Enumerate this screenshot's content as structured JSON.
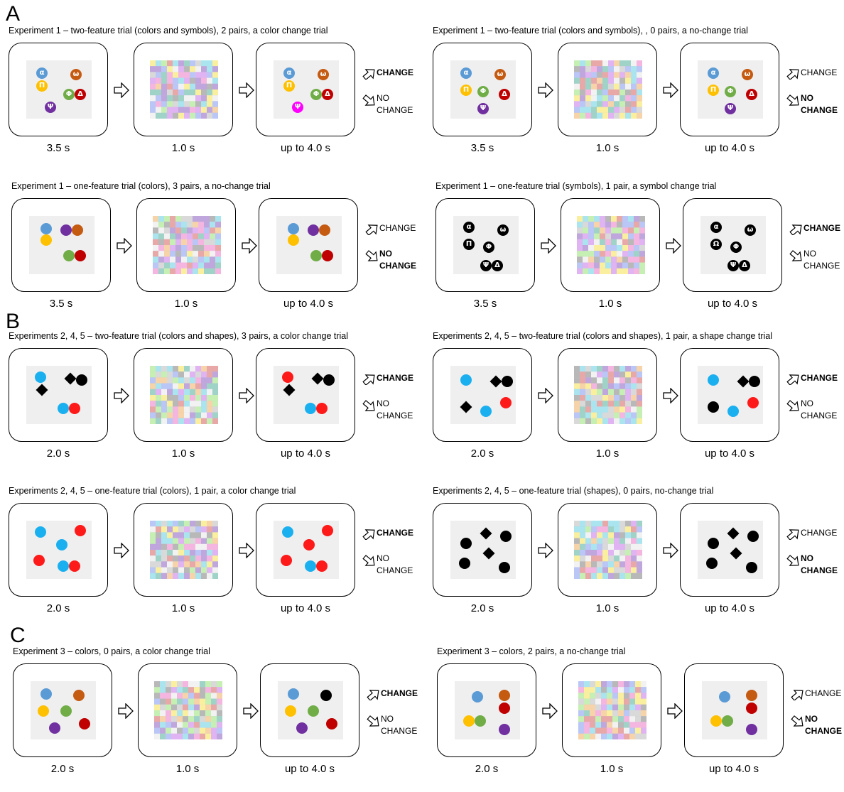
{
  "sections": [
    "A",
    "B",
    "C"
  ],
  "trials": [
    {
      "title": "Experiment 1 – two-feature trial (colors and symbols), 2 pairs, a color change trial",
      "durations": [
        "3.5 s",
        "1.0 s",
        "up to 4.0 s"
      ],
      "answer": "change",
      "sample": [
        {
          "color": "#5b9bd5",
          "sym": "α",
          "x": 14,
          "y": 10
        },
        {
          "color": "#c55a11",
          "sym": "ω",
          "x": 62,
          "y": 12
        },
        {
          "color": "#ffc000",
          "sym": "Π",
          "x": 14,
          "y": 28
        },
        {
          "color": "#70ad47",
          "sym": "Φ",
          "x": 52,
          "y": 40
        },
        {
          "color": "#c00000",
          "sym": "Δ",
          "x": 68,
          "y": 40
        },
        {
          "color": "#7030a0",
          "sym": "Ψ",
          "x": 26,
          "y": 58
        }
      ],
      "test": [
        {
          "color": "#5b9bd5",
          "sym": "α",
          "x": 14,
          "y": 10
        },
        {
          "color": "#c55a11",
          "sym": "ω",
          "x": 62,
          "y": 12
        },
        {
          "color": "#ffc000",
          "sym": "Π",
          "x": 14,
          "y": 28
        },
        {
          "color": "#70ad47",
          "sym": "Φ",
          "x": 52,
          "y": 40
        },
        {
          "color": "#c00000",
          "sym": "Δ",
          "x": 68,
          "y": 40
        },
        {
          "color": "#ff00ff",
          "sym": "Ψ",
          "x": 26,
          "y": 58
        }
      ]
    },
    {
      "title": "Experiment 1 – two-feature trial (colors and symbols), , 0 pairs, a no-change trial",
      "durations": [
        "3.5 s",
        "1.0 s",
        "up to 4.0 s"
      ],
      "answer": "nochange",
      "sample": [
        {
          "color": "#5b9bd5",
          "sym": "α",
          "x": 14,
          "y": 10
        },
        {
          "color": "#c55a11",
          "sym": "ω",
          "x": 62,
          "y": 12
        },
        {
          "color": "#ffc000",
          "sym": "Π",
          "x": 14,
          "y": 34
        },
        {
          "color": "#70ad47",
          "sym": "Φ",
          "x": 38,
          "y": 36
        },
        {
          "color": "#c00000",
          "sym": "Δ",
          "x": 68,
          "y": 40
        },
        {
          "color": "#7030a0",
          "sym": "Ψ",
          "x": 38,
          "y": 60
        }
      ],
      "test": [
        {
          "color": "#5b9bd5",
          "sym": "α",
          "x": 14,
          "y": 10
        },
        {
          "color": "#c55a11",
          "sym": "ω",
          "x": 62,
          "y": 12
        },
        {
          "color": "#ffc000",
          "sym": "Π",
          "x": 14,
          "y": 34
        },
        {
          "color": "#70ad47",
          "sym": "Φ",
          "x": 38,
          "y": 36
        },
        {
          "color": "#c00000",
          "sym": "Δ",
          "x": 68,
          "y": 40
        },
        {
          "color": "#7030a0",
          "sym": "Ψ",
          "x": 38,
          "y": 60
        }
      ]
    },
    {
      "title": "Experiment 1 – one-feature trial (colors), 3 pairs, a no-change trial",
      "durations": [
        "3.5 s",
        "1.0 s",
        "up to 4.0 s"
      ],
      "answer": "nochange",
      "sample": [
        {
          "color": "#5b9bd5",
          "sym": "",
          "x": 16,
          "y": 10
        },
        {
          "color": "#7030a0",
          "sym": "",
          "x": 44,
          "y": 12
        },
        {
          "color": "#c55a11",
          "sym": "",
          "x": 60,
          "y": 12
        },
        {
          "color": "#ffc000",
          "sym": "",
          "x": 16,
          "y": 26
        },
        {
          "color": "#70ad47",
          "sym": "",
          "x": 48,
          "y": 48
        },
        {
          "color": "#c00000",
          "sym": "",
          "x": 64,
          "y": 48
        }
      ],
      "test": [
        {
          "color": "#5b9bd5",
          "sym": "",
          "x": 16,
          "y": 10
        },
        {
          "color": "#7030a0",
          "sym": "",
          "x": 44,
          "y": 12
        },
        {
          "color": "#c55a11",
          "sym": "",
          "x": 60,
          "y": 12
        },
        {
          "color": "#ffc000",
          "sym": "",
          "x": 16,
          "y": 26
        },
        {
          "color": "#70ad47",
          "sym": "",
          "x": 48,
          "y": 48
        },
        {
          "color": "#c00000",
          "sym": "",
          "x": 64,
          "y": 48
        }
      ]
    },
    {
      "title": "Experiment 1 – one-feature trial (symbols), 1 pair, a symbol change trial",
      "durations": [
        "3.5 s",
        "1.0 s",
        "up to 4.0 s"
      ],
      "answer": "change",
      "sample": [
        {
          "color": "#000",
          "sym": "α",
          "x": 14,
          "y": 8
        },
        {
          "color": "#000",
          "sym": "ω",
          "x": 62,
          "y": 12
        },
        {
          "color": "#000",
          "sym": "Π",
          "x": 14,
          "y": 32
        },
        {
          "color": "#000",
          "sym": "Φ",
          "x": 42,
          "y": 36
        },
        {
          "color": "#000",
          "sym": "Ψ",
          "x": 38,
          "y": 62
        },
        {
          "color": "#000",
          "sym": "Δ",
          "x": 54,
          "y": 62
        }
      ],
      "test": [
        {
          "color": "#000",
          "sym": "α",
          "x": 14,
          "y": 8
        },
        {
          "color": "#000",
          "sym": "ω",
          "x": 62,
          "y": 12
        },
        {
          "color": "#000",
          "sym": "Ω",
          "x": 14,
          "y": 32
        },
        {
          "color": "#000",
          "sym": "Φ",
          "x": 42,
          "y": 36
        },
        {
          "color": "#000",
          "sym": "Ψ",
          "x": 38,
          "y": 62
        },
        {
          "color": "#000",
          "sym": "Δ",
          "x": 54,
          "y": 62
        }
      ]
    },
    {
      "title": "Experiments 2, 4, 5 – two-feature trial (colors and shapes), 3 pairs, a color change trial",
      "durations": [
        "2.0 s",
        "1.0 s",
        "up to 4.0 s"
      ],
      "answer": "change",
      "sample": [
        {
          "color": "#1ab0f0",
          "shape": "circle",
          "x": 12,
          "y": 8
        },
        {
          "color": "#000",
          "shape": "diamond",
          "x": 54,
          "y": 10
        },
        {
          "color": "#000",
          "shape": "circle",
          "x": 70,
          "y": 12
        },
        {
          "color": "#000",
          "shape": "diamond",
          "x": 14,
          "y": 26
        },
        {
          "color": "#1ab0f0",
          "shape": "circle",
          "x": 44,
          "y": 52
        },
        {
          "color": "#ff1a1a",
          "shape": "circle",
          "x": 60,
          "y": 52
        }
      ],
      "test": [
        {
          "color": "#ff1a1a",
          "shape": "circle",
          "x": 12,
          "y": 8
        },
        {
          "color": "#000",
          "shape": "diamond",
          "x": 54,
          "y": 10
        },
        {
          "color": "#000",
          "shape": "circle",
          "x": 70,
          "y": 12
        },
        {
          "color": "#000",
          "shape": "diamond",
          "x": 14,
          "y": 26
        },
        {
          "color": "#1ab0f0",
          "shape": "circle",
          "x": 44,
          "y": 52
        },
        {
          "color": "#ff1a1a",
          "shape": "circle",
          "x": 60,
          "y": 52
        }
      ]
    },
    {
      "title": "Experiments 2, 4, 5 – two-feature trial (colors and shapes), 1 pair, a shape change trial",
      "durations": [
        "2.0 s",
        "1.0 s",
        "up to 4.0 s"
      ],
      "answer": "change",
      "sample": [
        {
          "color": "#1ab0f0",
          "shape": "circle",
          "x": 14,
          "y": 12
        },
        {
          "color": "#000",
          "shape": "diamond",
          "x": 56,
          "y": 14
        },
        {
          "color": "#000",
          "shape": "circle",
          "x": 72,
          "y": 14
        },
        {
          "color": "#000",
          "shape": "diamond",
          "x": 14,
          "y": 50
        },
        {
          "color": "#1ab0f0",
          "shape": "circle",
          "x": 42,
          "y": 56
        },
        {
          "color": "#ff1a1a",
          "shape": "circle",
          "x": 70,
          "y": 44
        }
      ],
      "test": [
        {
          "color": "#1ab0f0",
          "shape": "circle",
          "x": 14,
          "y": 12
        },
        {
          "color": "#000",
          "shape": "diamond",
          "x": 56,
          "y": 14
        },
        {
          "color": "#000",
          "shape": "circle",
          "x": 72,
          "y": 14
        },
        {
          "color": "#000",
          "shape": "circle",
          "x": 14,
          "y": 50
        },
        {
          "color": "#1ab0f0",
          "shape": "circle",
          "x": 42,
          "y": 56
        },
        {
          "color": "#ff1a1a",
          "shape": "circle",
          "x": 70,
          "y": 44
        }
      ]
    },
    {
      "title": "Experiments 2, 4, 5 – one-feature trial (colors), 1 pair, a color change trial",
      "durations": [
        "2.0 s",
        "1.0 s",
        "up to 4.0 s"
      ],
      "answer": "change",
      "sample": [
        {
          "color": "#1ab0f0",
          "shape": "circle",
          "x": 12,
          "y": 8
        },
        {
          "color": "#ff1a1a",
          "shape": "circle",
          "x": 68,
          "y": 6
        },
        {
          "color": "#1ab0f0",
          "shape": "circle",
          "x": 42,
          "y": 26
        },
        {
          "color": "#ff1a1a",
          "shape": "circle",
          "x": 10,
          "y": 48
        },
        {
          "color": "#1ab0f0",
          "shape": "circle",
          "x": 44,
          "y": 56
        },
        {
          "color": "#ff1a1a",
          "shape": "circle",
          "x": 60,
          "y": 56
        }
      ],
      "test": [
        {
          "color": "#1ab0f0",
          "shape": "circle",
          "x": 12,
          "y": 8
        },
        {
          "color": "#ff1a1a",
          "shape": "circle",
          "x": 68,
          "y": 6
        },
        {
          "color": "#ff1a1a",
          "shape": "circle",
          "x": 42,
          "y": 26
        },
        {
          "color": "#ff1a1a",
          "shape": "circle",
          "x": 10,
          "y": 48
        },
        {
          "color": "#1ab0f0",
          "shape": "circle",
          "x": 44,
          "y": 56
        },
        {
          "color": "#ff1a1a",
          "shape": "circle",
          "x": 60,
          "y": 56
        }
      ]
    },
    {
      "title": "Experiments 2, 4, 5 – one-feature trial (shapes), 0 pairs, no-change trial",
      "durations": [
        "2.0 s",
        "1.0 s",
        "up to 4.0 s"
      ],
      "answer": "nochange",
      "sample": [
        {
          "color": "#000",
          "shape": "diamond",
          "x": 42,
          "y": 10
        },
        {
          "color": "#000",
          "shape": "circle",
          "x": 70,
          "y": 14
        },
        {
          "color": "#000",
          "shape": "circle",
          "x": 14,
          "y": 24
        },
        {
          "color": "#000",
          "shape": "diamond",
          "x": 46,
          "y": 38
        },
        {
          "color": "#000",
          "shape": "circle",
          "x": 12,
          "y": 52
        },
        {
          "color": "#000",
          "shape": "circle",
          "x": 68,
          "y": 58
        }
      ],
      "test": [
        {
          "color": "#000",
          "shape": "diamond",
          "x": 42,
          "y": 10
        },
        {
          "color": "#000",
          "shape": "circle",
          "x": 70,
          "y": 14
        },
        {
          "color": "#000",
          "shape": "circle",
          "x": 14,
          "y": 24
        },
        {
          "color": "#000",
          "shape": "diamond",
          "x": 46,
          "y": 38
        },
        {
          "color": "#000",
          "shape": "circle",
          "x": 12,
          "y": 52
        },
        {
          "color": "#000",
          "shape": "circle",
          "x": 68,
          "y": 58
        }
      ]
    },
    {
      "title": "Experiment 3 – colors, 0 pairs, a color change trial",
      "durations": [
        "2.0 s",
        "1.0 s",
        "up to 4.0 s"
      ],
      "answer": "change",
      "sample": [
        {
          "color": "#5b9bd5",
          "shape": "circle",
          "x": 14,
          "y": 10
        },
        {
          "color": "#c55a11",
          "shape": "circle",
          "x": 60,
          "y": 12
        },
        {
          "color": "#ffc000",
          "shape": "circle",
          "x": 10,
          "y": 34
        },
        {
          "color": "#70ad47",
          "shape": "circle",
          "x": 42,
          "y": 34
        },
        {
          "color": "#7030a0",
          "shape": "circle",
          "x": 26,
          "y": 58
        },
        {
          "color": "#c00000",
          "shape": "circle",
          "x": 68,
          "y": 52
        }
      ],
      "test": [
        {
          "color": "#5b9bd5",
          "shape": "circle",
          "x": 14,
          "y": 10
        },
        {
          "color": "#000000",
          "shape": "circle",
          "x": 60,
          "y": 12
        },
        {
          "color": "#ffc000",
          "shape": "circle",
          "x": 10,
          "y": 34
        },
        {
          "color": "#70ad47",
          "shape": "circle",
          "x": 42,
          "y": 34
        },
        {
          "color": "#7030a0",
          "shape": "circle",
          "x": 26,
          "y": 58
        },
        {
          "color": "#c00000",
          "shape": "circle",
          "x": 68,
          "y": 52
        }
      ]
    },
    {
      "title": "Experiment 3 – colors, 2 pairs, a no-change trial",
      "durations": [
        "2.0 s",
        "1.0 s",
        "up to 4.0 s"
      ],
      "answer": "nochange",
      "sample": [
        {
          "color": "#5b9bd5",
          "shape": "circle",
          "x": 24,
          "y": 14
        },
        {
          "color": "#c55a11",
          "shape": "circle",
          "x": 62,
          "y": 12
        },
        {
          "color": "#c00000",
          "shape": "circle",
          "x": 62,
          "y": 30
        },
        {
          "color": "#ffc000",
          "shape": "circle",
          "x": 12,
          "y": 48
        },
        {
          "color": "#70ad47",
          "shape": "circle",
          "x": 28,
          "y": 48
        },
        {
          "color": "#7030a0",
          "shape": "circle",
          "x": 62,
          "y": 60
        }
      ],
      "test": [
        {
          "color": "#5b9bd5",
          "shape": "circle",
          "x": 24,
          "y": 14
        },
        {
          "color": "#c55a11",
          "shape": "circle",
          "x": 62,
          "y": 12
        },
        {
          "color": "#c00000",
          "shape": "circle",
          "x": 62,
          "y": 30
        },
        {
          "color": "#ffc000",
          "shape": "circle",
          "x": 12,
          "y": 48
        },
        {
          "color": "#70ad47",
          "shape": "circle",
          "x": 28,
          "y": 48
        },
        {
          "color": "#7030a0",
          "shape": "circle",
          "x": 62,
          "y": 60
        }
      ]
    }
  ],
  "response": {
    "change": "CHANGE",
    "no": "NO",
    "change2": "CHANGE"
  }
}
